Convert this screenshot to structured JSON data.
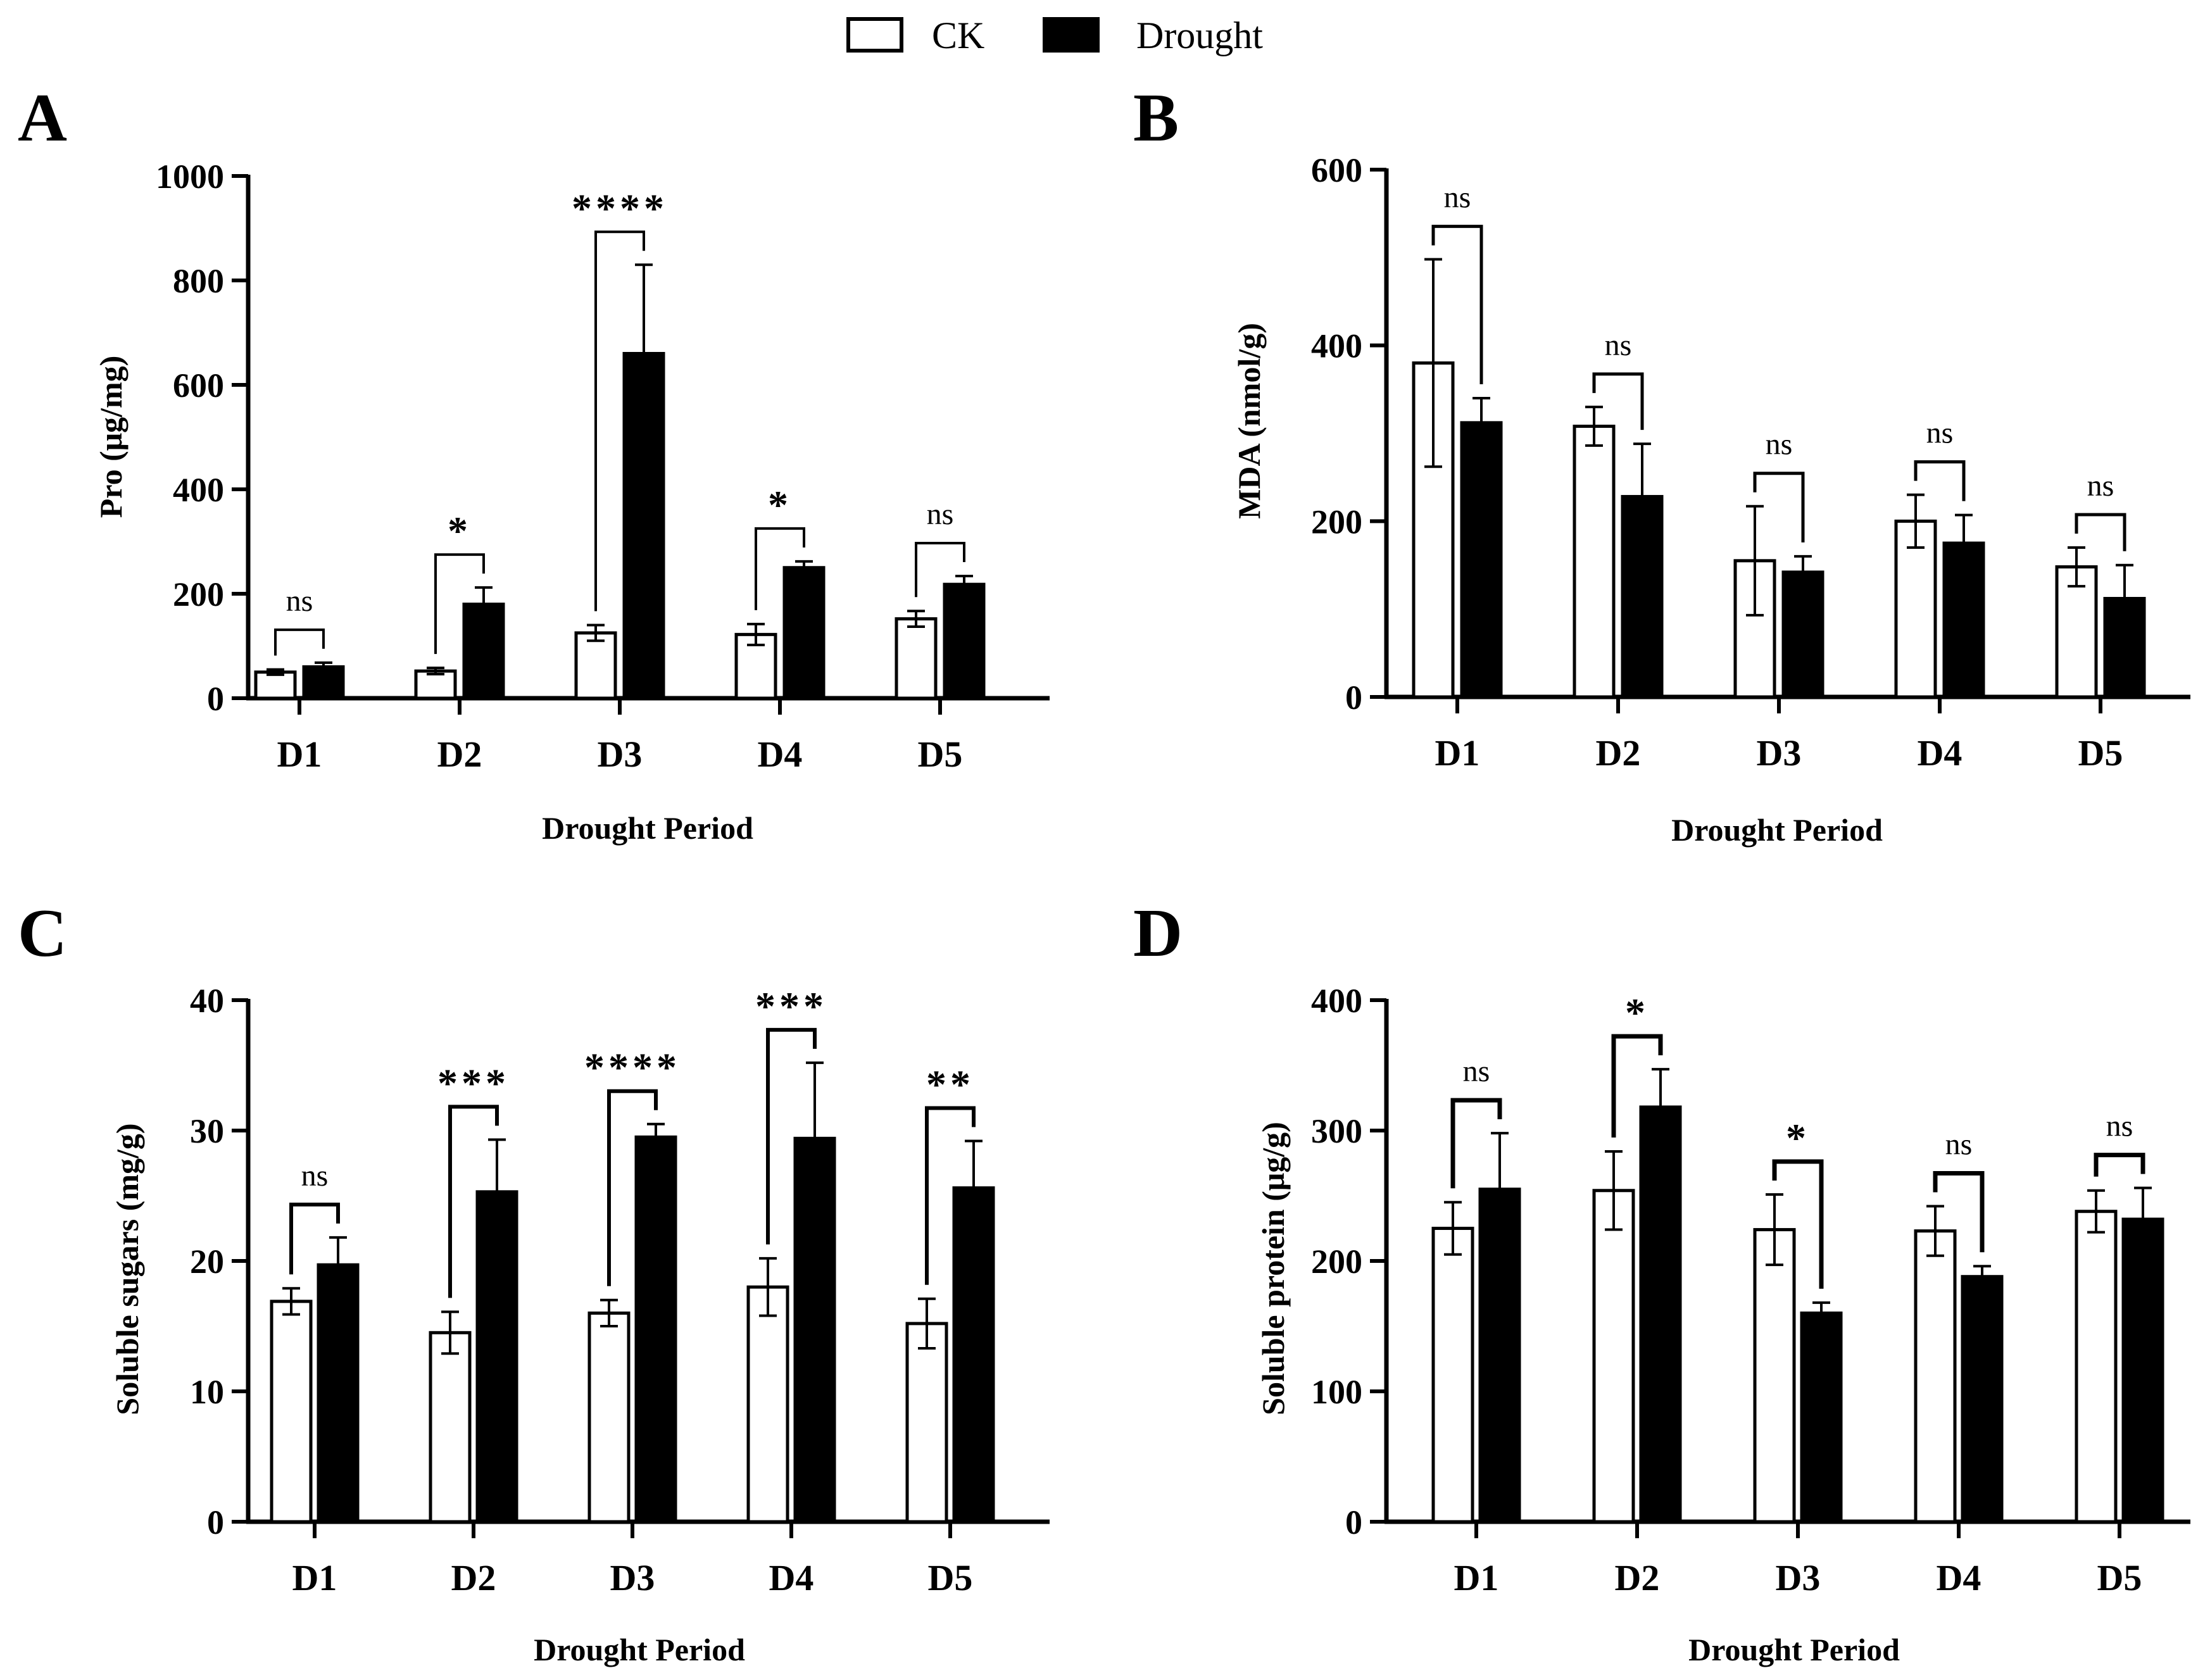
{
  "legend": {
    "items": [
      {
        "label": "CK",
        "color": "#ffffff"
      },
      {
        "label": "Drought",
        "color": "#000000"
      }
    ]
  },
  "colors": {
    "ck": "#ffffff",
    "drought": "#000000",
    "axis": "#000000"
  },
  "chart_data": [
    {
      "type": "bar",
      "panel_label": "A",
      "title": "",
      "xlabel": "Drought Period",
      "ylabel": "Pro  (μg/mg)",
      "categories": [
        "D1",
        "D2",
        "D3",
        "D4",
        "D5"
      ],
      "ylim": [
        0,
        1000
      ],
      "yticks": [
        0,
        200,
        400,
        600,
        800,
        1000
      ],
      "series": [
        {
          "name": "CK",
          "values": [
            50,
            52,
            125,
            122,
            152
          ],
          "errors": [
            5,
            6,
            15,
            20,
            15
          ]
        },
        {
          "name": "Drought",
          "values": [
            60,
            180,
            660,
            250,
            218
          ],
          "errors": [
            8,
            32,
            170,
            12,
            16
          ]
        }
      ],
      "significance": [
        "ns",
        "*",
        "****",
        "*",
        "ns"
      ]
    },
    {
      "type": "bar",
      "panel_label": "B",
      "title": "",
      "xlabel": "Drought Period",
      "ylabel": "MDA (nmol/g)",
      "categories": [
        "D1",
        "D2",
        "D3",
        "D4",
        "D5"
      ],
      "ylim": [
        0,
        600
      ],
      "yticks": [
        0,
        200,
        400,
        600
      ],
      "series": [
        {
          "name": "CK",
          "values": [
            380,
            308,
            155,
            200,
            148
          ],
          "errors": [
            118,
            22,
            62,
            30,
            22
          ]
        },
        {
          "name": "Drought",
          "values": [
            312,
            228,
            142,
            175,
            112
          ],
          "errors": [
            28,
            60,
            18,
            32,
            38
          ]
        }
      ],
      "significance": [
        "ns",
        "ns",
        "ns",
        "ns",
        "ns"
      ]
    },
    {
      "type": "bar",
      "panel_label": "C",
      "title": "",
      "xlabel": "Drought Period",
      "ylabel": "Soluble sugars  (mg/g)",
      "categories": [
        "D1",
        "D2",
        "D3",
        "D4",
        "D5"
      ],
      "ylim": [
        0,
        40
      ],
      "yticks": [
        0,
        10,
        20,
        30,
        40
      ],
      "series": [
        {
          "name": "CK",
          "values": [
            16.9,
            14.5,
            16.0,
            18.0,
            15.2
          ],
          "errors": [
            1.0,
            1.6,
            1.0,
            2.2,
            1.9
          ]
        },
        {
          "name": "Drought",
          "values": [
            19.7,
            25.3,
            29.5,
            29.4,
            25.6
          ],
          "errors": [
            2.1,
            4.0,
            1.0,
            5.8,
            3.6
          ]
        }
      ],
      "significance": [
        "ns",
        "***",
        "****",
        "***",
        "**"
      ]
    },
    {
      "type": "bar",
      "panel_label": "D",
      "title": "",
      "xlabel": "Drought Period",
      "ylabel": "Soluble protein  (μg/g)",
      "categories": [
        "D1",
        "D2",
        "D3",
        "D4",
        "D5"
      ],
      "ylim": [
        0,
        400
      ],
      "yticks": [
        0,
        100,
        200,
        300,
        400
      ],
      "series": [
        {
          "name": "CK",
          "values": [
            225,
            254,
            224,
            223,
            238
          ],
          "errors": [
            20,
            30,
            27,
            19,
            16
          ]
        },
        {
          "name": "Drought",
          "values": [
            255,
            318,
            160,
            188,
            232
          ],
          "errors": [
            43,
            29,
            8,
            8,
            24
          ]
        }
      ],
      "significance": [
        "ns",
        "*",
        "*",
        "ns",
        "ns"
      ]
    }
  ]
}
